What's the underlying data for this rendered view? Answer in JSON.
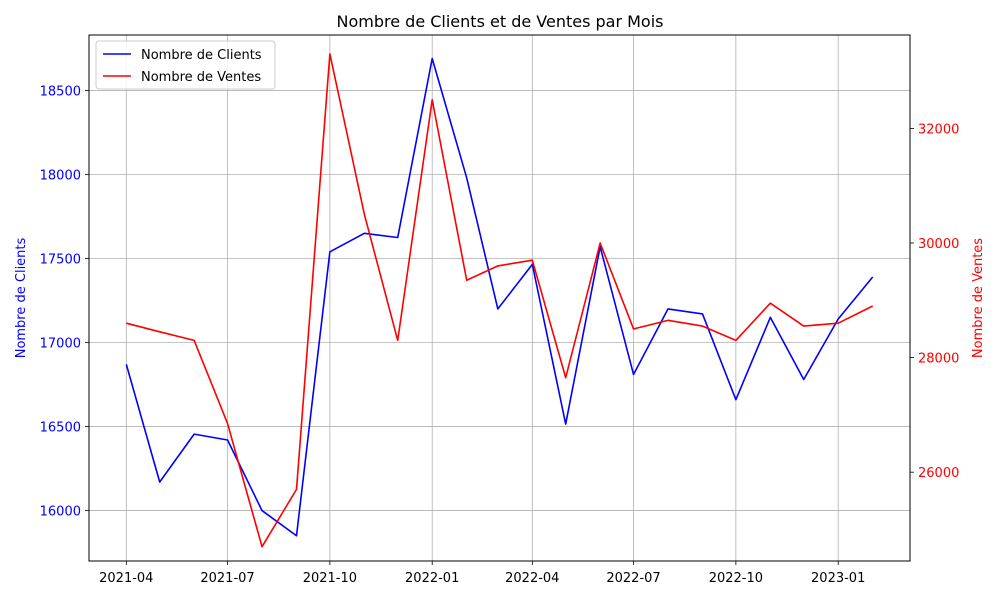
{
  "chart_data": {
    "type": "line",
    "title": "Nombre de Clients et de Ventes par Mois",
    "x": [
      "2021-04-01",
      "2021-05-01",
      "2021-06-01",
      "2021-07-01",
      "2021-08-01",
      "2021-09-01",
      "2021-10-01",
      "2021-11-01",
      "2021-12-01",
      "2022-01-01",
      "2022-02-01",
      "2022-03-01",
      "2022-04-01",
      "2022-05-01",
      "2022-06-01",
      "2022-07-01",
      "2022-08-01",
      "2022-09-01",
      "2022-10-01",
      "2022-11-01",
      "2022-12-01",
      "2023-01-01",
      "2023-02-01"
    ],
    "x_ticks": [
      "2021-04",
      "2021-07",
      "2021-10",
      "2022-01",
      "2022-04",
      "2022-07",
      "2022-10",
      "2023-01"
    ],
    "series": [
      {
        "name": "Nombre de Clients",
        "axis": "left",
        "color": "#0000ff",
        "values": [
          16870,
          16170,
          16455,
          16420,
          16000,
          15850,
          17540,
          17650,
          17625,
          18690,
          17980,
          17200,
          17465,
          16515,
          17570,
          16810,
          17200,
          17170,
          16660,
          17150,
          16780,
          17140,
          17390
        ]
      },
      {
        "name": "Nombre de Ventes",
        "axis": "right",
        "color": "#ff0000",
        "values": [
          28600,
          28450,
          28300,
          26850,
          24700,
          25700,
          33300,
          30500,
          28300,
          32500,
          29350,
          29600,
          29700,
          27650,
          30000,
          28500,
          28650,
          28550,
          28300,
          28950,
          28550,
          28600,
          28900
        ]
      }
    ],
    "ylabel_left": "Nombre de Clients",
    "ylabel_right": "Nombre de Ventes",
    "ylim_left": [
      15700,
      18830
    ],
    "ylim_right": [
      24450,
      33630
    ],
    "yticks_left": [
      16000,
      16500,
      17000,
      17500,
      18000,
      18500
    ],
    "yticks_right": [
      26000,
      28000,
      30000,
      32000
    ],
    "left_tick_color": "#0000ff",
    "right_tick_color": "#ff0000",
    "grid": true,
    "legend_position": "top-left"
  }
}
